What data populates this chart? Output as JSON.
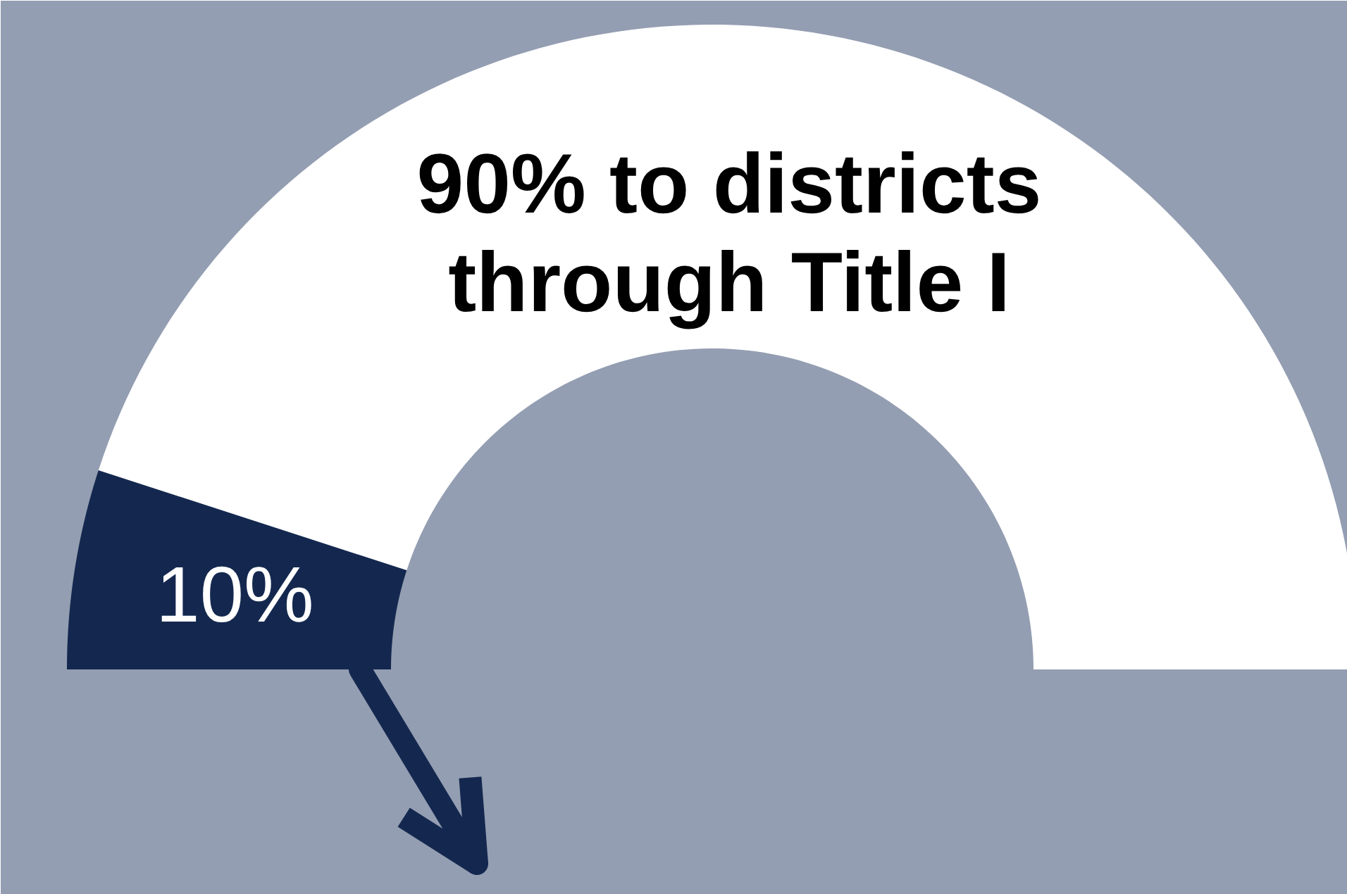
{
  "chart_data": {
    "type": "donut",
    "categories": [
      null,
      null
    ],
    "values": [
      10,
      90
    ],
    "colors": [
      "#14284f",
      "#ffffff"
    ],
    "annotations": [
      "10%",
      "90% to districts\nthrough Title I"
    ]
  }
}
